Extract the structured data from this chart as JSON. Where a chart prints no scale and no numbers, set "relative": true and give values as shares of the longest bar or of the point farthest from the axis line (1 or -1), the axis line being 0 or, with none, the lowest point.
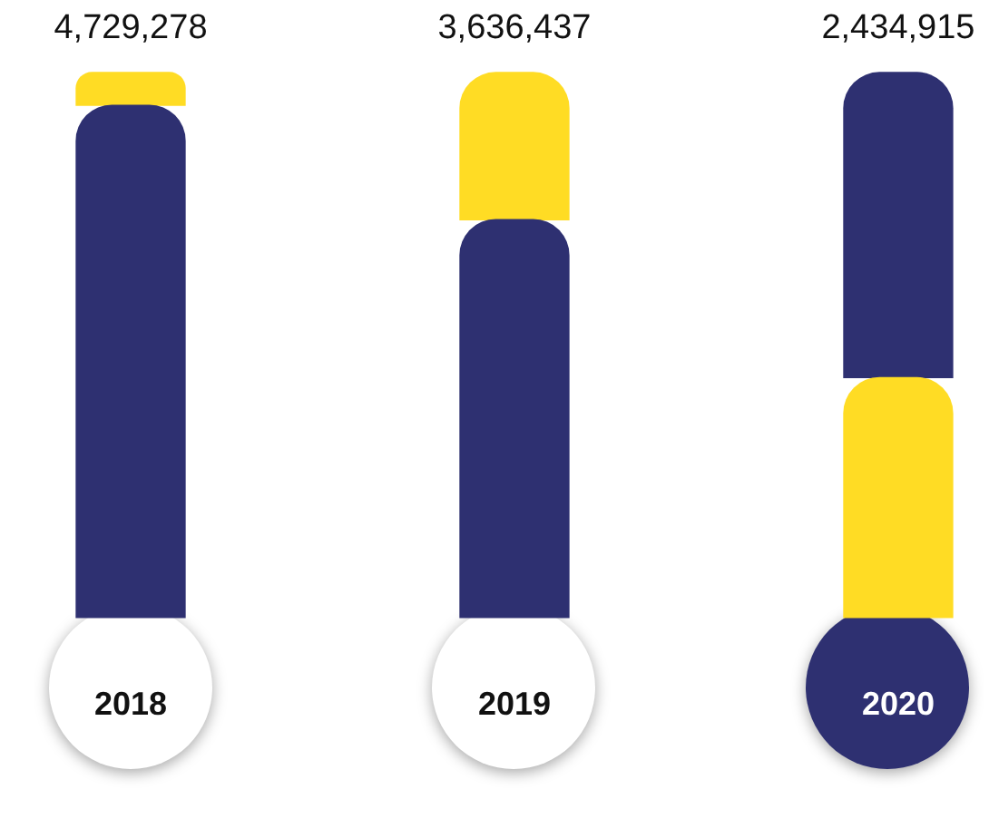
{
  "chart_data": {
    "type": "bar",
    "stacked": true,
    "relative": true,
    "categories": [
      "2018",
      "2019",
      "2020"
    ],
    "series": [
      {
        "colors": [
          "#2e3071",
          "#2e3071",
          "#ffdc24"
        ],
        "values": [
          0.94,
          0.73,
          0.44
        ]
      },
      {
        "colors": [
          "#ffdc24",
          "#ffdc24",
          "#2e3071"
        ],
        "values": [
          0.06,
          0.27,
          0.56
        ]
      }
    ],
    "annotations": [
      "4,729,278",
      "3,636,437",
      "2,434,915"
    ],
    "grid": false,
    "legend": false
  }
}
